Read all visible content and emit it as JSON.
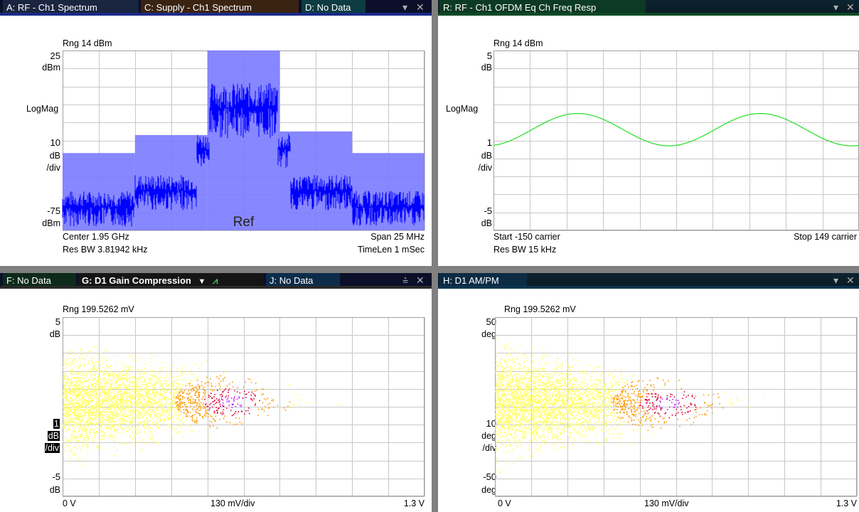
{
  "colors": {
    "trace_spectrum": "#0000ff",
    "mask_fill": "#7a7aff",
    "trace_freqresp": "#22dd22",
    "density_low": "#ffff66",
    "density_mid": "#ff9900",
    "density_high": "#e0003a",
    "density_peak": "#c020ff",
    "grid": "#c8c8c8"
  },
  "top_left": {
    "tabs": [
      "A: RF - Ch1 Spectrum",
      "C: Supply - Ch1 Spectrum",
      "D: No Data"
    ],
    "active_tab": "A: RF - Ch1 Spectrum",
    "range": "Rng 14 dBm",
    "y_top": "25",
    "y_top_unit": "dBm",
    "scale_type": "LogMag",
    "scale_value": "10",
    "scale_unit": "dB",
    "scale_per": "/div",
    "y_bottom": "-75",
    "y_bottom_unit": "dBm",
    "center": "Center 1.95 GHz",
    "span": "Span 25 MHz",
    "res_bw": "Res BW 3.81942 kHz",
    "time_len": "TimeLen 1 mSec",
    "ref_label": "Ref"
  },
  "top_right": {
    "tabs": [
      "R: RF - Ch1 OFDM Eq Ch Freq Resp"
    ],
    "range": "Rng 14 dBm",
    "y_top": "5",
    "y_top_unit": "dB",
    "scale_type": "LogMag",
    "scale_value": "1",
    "scale_unit": "dB",
    "scale_per": "/div",
    "y_bottom": "-5",
    "y_bottom_unit": "dB",
    "start": "Start -150  carrier",
    "stop": "Stop 149  carrier",
    "res_bw": "Res BW 15 kHz"
  },
  "bottom_left": {
    "tabs": [
      "F: No Data",
      "G: D1 Gain Compression",
      "J: No Data"
    ],
    "active_tab": "G: D1 Gain Compression",
    "range": "Rng 199.5262 mV",
    "y_top": "5",
    "y_top_unit": "dB",
    "scale_value": "1",
    "scale_unit": "dB",
    "scale_per": "/div",
    "y_bottom": "-5",
    "y_bottom_unit": "dB",
    "x_left": "0  V",
    "x_mid": "130 mV/div",
    "x_right": "1.3  V"
  },
  "bottom_right": {
    "tabs": [
      "H: D1 AM/PM"
    ],
    "range": "Rng 199.5262 mV",
    "y_top": "50",
    "y_top_unit": "deg",
    "scale_value": "10",
    "scale_unit": "deg",
    "scale_per": "/div",
    "y_bottom": "-50",
    "y_bottom_unit": "deg",
    "x_left": "0  V",
    "x_mid": "130 mV/div",
    "x_right": "1.3  V"
  },
  "icons": {
    "tab_dropdown": "▾",
    "close": "✕",
    "waveform": "waveform-icon"
  }
}
